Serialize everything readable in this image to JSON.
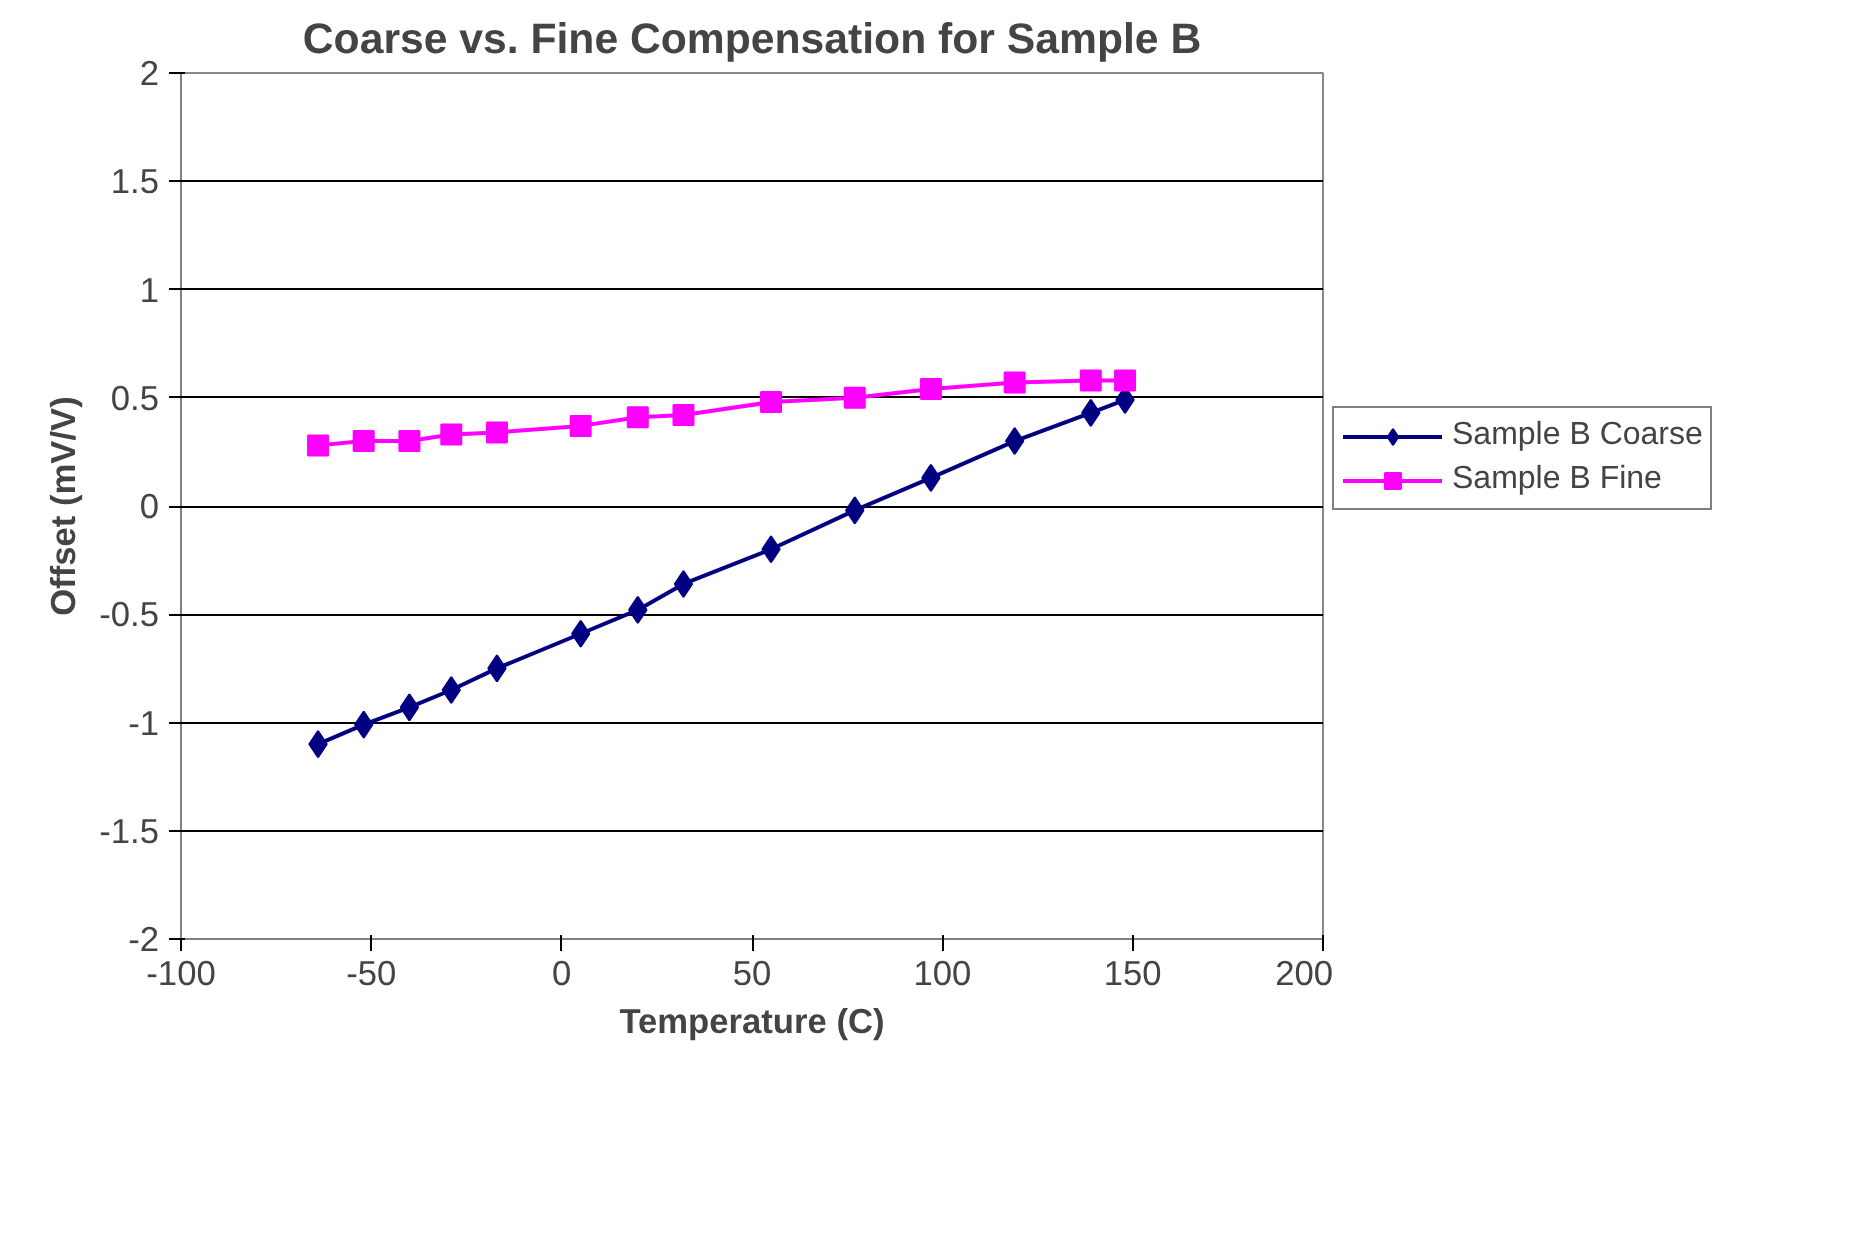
{
  "chart_data": {
    "type": "line",
    "title": "Coarse vs. Fine Compensation for Sample B",
    "xlabel": "Temperature (C)",
    "ylabel": "Offset (mV/V)",
    "xlim": [
      -100,
      200
    ],
    "xticks": [
      -100,
      -50,
      0,
      50,
      100,
      150,
      200
    ],
    "ylim": [
      -2,
      2
    ],
    "yticks": [
      -2,
      -1.5,
      -1,
      -0.5,
      0,
      0.5,
      1,
      1.5,
      2
    ],
    "grid": "y",
    "legend": "right",
    "line_style": "solid",
    "x": [
      -64,
      -52,
      -40,
      -29,
      -17,
      5,
      20,
      32,
      55,
      77,
      97,
      119,
      139,
      148
    ],
    "series": [
      {
        "name": "Sample B Coarse",
        "color": "#000080",
        "marker": "diamond",
        "values": [
          -1.1,
          -1.01,
          -0.93,
          -0.85,
          -0.75,
          -0.59,
          -0.48,
          -0.36,
          -0.2,
          -0.02,
          0.13,
          0.3,
          0.43,
          0.49
        ]
      },
      {
        "name": "Sample B Fine",
        "color": "#ff00ff",
        "marker": "square",
        "values": [
          0.28,
          0.3,
          0.3,
          0.33,
          0.34,
          0.37,
          0.41,
          0.42,
          0.48,
          0.5,
          0.54,
          0.57,
          0.58,
          0.58
        ]
      }
    ]
  }
}
